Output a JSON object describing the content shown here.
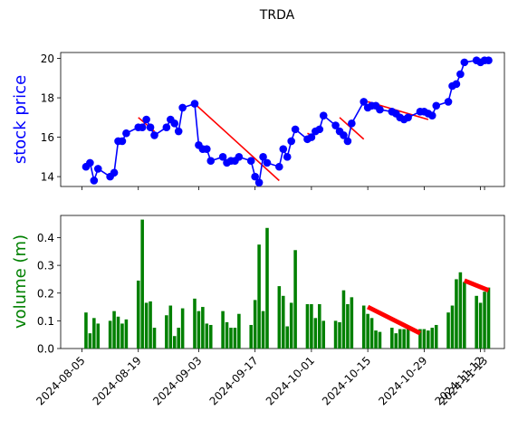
{
  "chart_data": {
    "title": "TRDA",
    "x_dates": [
      "2024-08-06",
      "2024-08-07",
      "2024-08-08",
      "2024-08-09",
      "2024-08-12",
      "2024-08-13",
      "2024-08-14",
      "2024-08-15",
      "2024-08-16",
      "2024-08-19",
      "2024-08-20",
      "2024-08-21",
      "2024-08-22",
      "2024-08-23",
      "2024-08-26",
      "2024-08-27",
      "2024-08-28",
      "2024-08-29",
      "2024-08-30",
      "2024-09-02",
      "2024-09-03",
      "2024-09-04",
      "2024-09-05",
      "2024-09-06",
      "2024-09-09",
      "2024-09-10",
      "2024-09-11",
      "2024-09-12",
      "2024-09-13",
      "2024-09-16",
      "2024-09-17",
      "2024-09-18",
      "2024-09-19",
      "2024-09-20",
      "2024-09-23",
      "2024-09-24",
      "2024-09-25",
      "2024-09-26",
      "2024-09-27",
      "2024-09-30",
      "2024-10-01",
      "2024-10-02",
      "2024-10-03",
      "2024-10-04",
      "2024-10-07",
      "2024-10-08",
      "2024-10-09",
      "2024-10-10",
      "2024-10-11",
      "2024-10-14",
      "2024-10-15",
      "2024-10-16",
      "2024-10-17",
      "2024-10-18",
      "2024-10-21",
      "2024-10-22",
      "2024-10-23",
      "2024-10-24",
      "2024-10-25",
      "2024-10-28",
      "2024-10-29",
      "2024-10-30",
      "2024-10-31",
      "2024-11-01",
      "2024-11-04",
      "2024-11-05",
      "2024-11-06",
      "2024-11-07",
      "2024-11-08",
      "2024-11-11",
      "2024-11-12",
      "2024-11-13",
      "2024-11-14"
    ],
    "price_panel": {
      "type": "line",
      "ylabel": "stock price",
      "ylim": [
        13.5,
        20.3
      ],
      "yticks": [
        14,
        16,
        18,
        20
      ],
      "series": [
        {
          "values": [
            14.5,
            14.7,
            13.8,
            14.4,
            14.0,
            14.2,
            15.8,
            15.8,
            16.2,
            16.5,
            16.5,
            16.9,
            16.5,
            16.1,
            16.5,
            16.9,
            16.7,
            16.3,
            17.5,
            17.7,
            15.6,
            15.4,
            15.4,
            14.8,
            15.0,
            14.7,
            14.8,
            14.8,
            15.0,
            14.8,
            14.0,
            13.7,
            15.0,
            14.7,
            14.5,
            15.4,
            15.0,
            15.8,
            16.4,
            15.9,
            16.0,
            16.3,
            16.4,
            17.1,
            16.6,
            16.3,
            16.1,
            15.8,
            16.7,
            17.8,
            17.5,
            17.6,
            17.6,
            17.4,
            17.3,
            17.2,
            17.0,
            16.9,
            17.0,
            17.3,
            17.3,
            17.2,
            17.1,
            17.6,
            17.8,
            18.6,
            18.7,
            19.2,
            19.8,
            19.9,
            19.8,
            19.9,
            19.9
          ],
          "color": "#0000ff"
        }
      ],
      "trend_segments": [
        {
          "from": "2024-08-19",
          "to": "2024-08-23",
          "y0": 17.0,
          "y1": 16.3
        },
        {
          "from": "2024-09-02",
          "to": "2024-09-23",
          "y0": 17.7,
          "y1": 13.8
        },
        {
          "from": "2024-09-30",
          "to": "2024-10-01",
          "y0": 16.2,
          "y1": 16.1
        },
        {
          "from": "2024-10-08",
          "to": "2024-10-14",
          "y0": 17.0,
          "y1": 15.9
        },
        {
          "from": "2024-10-15",
          "to": "2024-10-30",
          "y0": 17.8,
          "y1": 16.9
        }
      ]
    },
    "volume_panel": {
      "type": "bar",
      "ylabel": "volume (m)",
      "ylim": [
        0,
        0.48
      ],
      "yticks": [
        "0.0",
        "0.1",
        "0.2",
        "0.3",
        "0.4"
      ],
      "values": [
        0.13,
        0.055,
        0.11,
        0.09,
        0.1,
        0.135,
        0.115,
        0.09,
        0.105,
        0.245,
        0.465,
        0.165,
        0.17,
        0.075,
        0.12,
        0.155,
        0.045,
        0.075,
        0.145,
        0.18,
        0.135,
        0.15,
        0.09,
        0.085,
        0.135,
        0.095,
        0.075,
        0.075,
        0.125,
        0.085,
        0.175,
        0.375,
        0.135,
        0.435,
        0.225,
        0.19,
        0.08,
        0.165,
        0.355,
        0.16,
        0.16,
        0.11,
        0.16,
        0.1,
        0.1,
        0.095,
        0.21,
        0.16,
        0.185,
        0.155,
        0.125,
        0.11,
        0.065,
        0.06,
        0.075,
        0.055,
        0.07,
        0.07,
        0.08,
        0.07,
        0.07,
        0.065,
        0.075,
        0.085,
        0.13,
        0.155,
        0.25,
        0.275,
        0.24,
        0.19,
        0.165,
        0.205,
        0.22
      ],
      "color": "#008000",
      "trend_segments": [
        {
          "from": "2024-10-15",
          "to": "2024-10-28",
          "y0": 0.15,
          "y1": 0.055
        },
        {
          "from": "2024-11-08",
          "to": "2024-11-14",
          "y0": 0.245,
          "y1": 0.21
        }
      ]
    },
    "xtick_labels": [
      "2024-08-05",
      "2024-08-19",
      "2024-09-03",
      "2024-09-17",
      "2024-10-01",
      "2024-10-15",
      "2024-10-29",
      "2024-11-12",
      "2024-11-13"
    ]
  }
}
